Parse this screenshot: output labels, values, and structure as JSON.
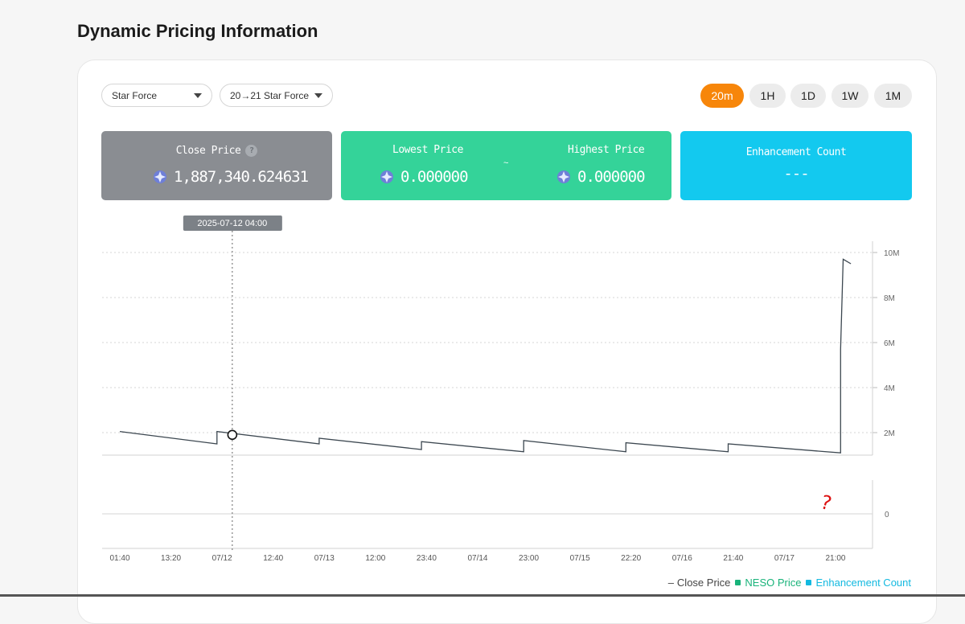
{
  "page": {
    "title": "Dynamic Pricing Information"
  },
  "filters": {
    "category": "Star Force",
    "subcategory": "20→21 Star Force"
  },
  "ranges": [
    {
      "label": "20m",
      "active": true
    },
    {
      "label": "1H",
      "active": false
    },
    {
      "label": "1D",
      "active": false
    },
    {
      "label": "1W",
      "active": false
    },
    {
      "label": "1M",
      "active": false
    }
  ],
  "stats": {
    "close_price_label": "Close Price",
    "close_price_help": "?",
    "close_price_value": "1,887,340.624631",
    "lowest_label": "Lowest Price",
    "lowest_value": "0.000000",
    "tilde": "~",
    "highest_label": "Highest Price",
    "highest_value": "0.000000",
    "enhancement_label": "Enhancement Count",
    "enhancement_value": "---",
    "colors": {
      "close": "#8a8d92",
      "range": "#34d399",
      "enhancement": "#13c9ef"
    }
  },
  "tooltip": {
    "date": "2025-07-12 04:00"
  },
  "annotation": "?",
  "chart_data": {
    "type": "line",
    "x_ticks": [
      "01:40",
      "13:20",
      "07/12",
      "12:40",
      "07/13",
      "12:00",
      "23:40",
      "07/14",
      "23:00",
      "07/15",
      "22:20",
      "07/16",
      "21:40",
      "07/17",
      "21:00"
    ],
    "y_ticks": [
      "10M",
      "8M",
      "6M",
      "4M",
      "2M"
    ],
    "y_ticks_lower": [
      "0"
    ],
    "ylim": [
      0,
      10000000
    ],
    "series": [
      {
        "name": "Close Price",
        "color": "#3c4750",
        "points": [
          [
            0,
            2050000
          ],
          [
            1.9,
            1500000
          ],
          [
            1.9,
            2050000
          ],
          [
            3.9,
            1500000
          ],
          [
            3.9,
            1750000
          ],
          [
            5.9,
            1250000
          ],
          [
            5.9,
            1600000
          ],
          [
            7.9,
            1150000
          ],
          [
            7.9,
            1650000
          ],
          [
            9.9,
            1150000
          ],
          [
            9.9,
            1550000
          ],
          [
            11.9,
            1150000
          ],
          [
            11.9,
            1500000
          ],
          [
            14.1,
            1100000
          ],
          [
            14.1,
            5700000
          ],
          [
            14.15,
            9700000
          ],
          [
            14.3,
            9500000
          ]
        ]
      }
    ],
    "highlight_point": [
      2.2,
      1900000
    ],
    "legend": [
      "Close Price",
      "NESO Price",
      "Enhancement Count"
    ],
    "legend_colors": [
      "#444444",
      "#19b37a",
      "#13b9e0"
    ]
  }
}
